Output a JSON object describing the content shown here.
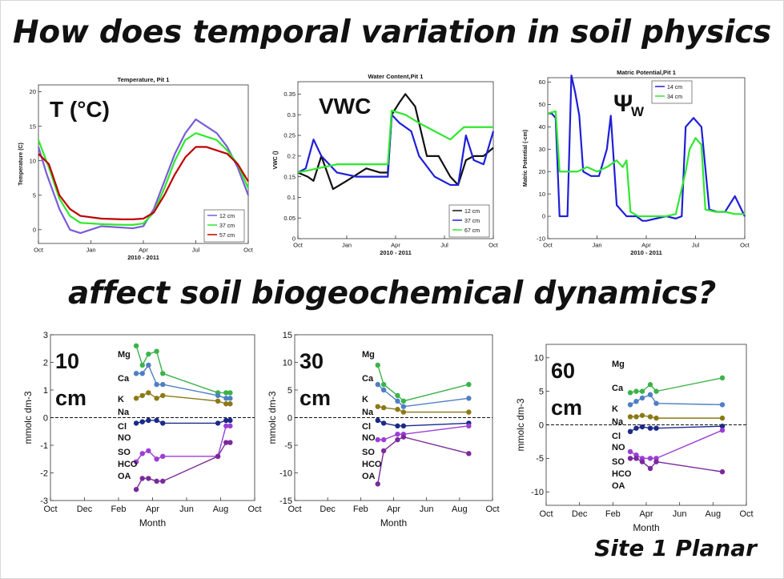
{
  "headline_top": "How does temporal variation in soil physics",
  "headline_bottom": "affect soil biogeochemical dynamics?",
  "site_label": "Site 1 Planar",
  "colors": {
    "blue": "#1f1fd8",
    "green": "#2ee82e",
    "black": "#111111",
    "red": "#c00000",
    "violet": "#7a5cd6",
    "cat_green": "#3cb34a",
    "cat_blue": "#4f7fc4",
    "olive": "#8a7a16",
    "purple": "#7a2a9a",
    "magenta": "#9b3fd6",
    "dark_blue": "#1a2a8a"
  },
  "chart_data": [
    {
      "type": "line",
      "title": "Temperature, Pit 1",
      "overlay_label": "T (°C)",
      "ylabel": "Temperature (C)",
      "xlabel": "2010 - 2011",
      "x_ticks": [
        "Oct",
        "Jan",
        "Apr",
        "Jul",
        "Oct"
      ],
      "y_ticks": [
        "0",
        "5",
        "10",
        "15",
        "20"
      ],
      "ylim": [
        -2,
        21
      ],
      "series": [
        {
          "name": "12 cm",
          "color": "violet",
          "x": [
            0,
            0.04,
            0.1,
            0.15,
            0.2,
            0.3,
            0.4,
            0.45,
            0.5,
            0.55,
            0.6,
            0.65,
            0.7,
            0.75,
            0.8,
            0.85,
            0.9,
            0.95,
            1
          ],
          "y": [
            12,
            8,
            3,
            0,
            -0.5,
            0.5,
            0.3,
            0.2,
            0.5,
            3,
            7,
            11,
            14,
            16,
            15,
            14,
            12,
            9,
            5
          ]
        },
        {
          "name": "37 cm",
          "color": "green",
          "x": [
            0,
            0.05,
            0.1,
            0.15,
            0.2,
            0.3,
            0.4,
            0.45,
            0.5,
            0.55,
            0.6,
            0.65,
            0.7,
            0.75,
            0.8,
            0.85,
            0.9,
            0.95,
            1
          ],
          "y": [
            13,
            9,
            4.5,
            2,
            1,
            0.8,
            0.7,
            0.7,
            0.9,
            2.5,
            6,
            10,
            13,
            14,
            13.5,
            13,
            11.5,
            9.5,
            6
          ]
        },
        {
          "name": "57 cm",
          "color": "red",
          "x": [
            0,
            0.05,
            0.1,
            0.15,
            0.2,
            0.3,
            0.4,
            0.45,
            0.5,
            0.55,
            0.6,
            0.65,
            0.7,
            0.75,
            0.8,
            0.85,
            0.9,
            0.95,
            1
          ],
          "y": [
            11,
            9.5,
            5,
            3,
            2,
            1.6,
            1.5,
            1.5,
            1.6,
            2.5,
            5,
            8,
            10.5,
            12,
            12,
            11.5,
            11,
            9.5,
            7
          ]
        }
      ]
    },
    {
      "type": "line",
      "title": "Water Content,Pit 1",
      "overlay_label": "VWC",
      "ylabel": "VWC ()",
      "xlabel": "2010 - 2011",
      "x_ticks": [
        "Oct",
        "Jan",
        "Apr",
        "Jul",
        "Oct"
      ],
      "y_ticks": [
        "0",
        "0.05",
        "0.1",
        "0.15",
        "0.2",
        "0.25",
        "0.3",
        "0.35"
      ],
      "ylim": [
        0,
        0.38
      ],
      "series": [
        {
          "name": "12 cm",
          "color": "black",
          "x": [
            0,
            0.05,
            0.08,
            0.12,
            0.18,
            0.25,
            0.35,
            0.42,
            0.46,
            0.48,
            0.52,
            0.55,
            0.6,
            0.66,
            0.72,
            0.78,
            0.82,
            0.86,
            0.9,
            0.95,
            1
          ],
          "y": [
            0.16,
            0.15,
            0.14,
            0.2,
            0.12,
            0.14,
            0.17,
            0.16,
            0.16,
            0.3,
            0.33,
            0.35,
            0.32,
            0.2,
            0.2,
            0.15,
            0.13,
            0.19,
            0.2,
            0.2,
            0.22
          ]
        },
        {
          "name": "37 cm",
          "color": "blue",
          "x": [
            0,
            0.04,
            0.08,
            0.12,
            0.2,
            0.3,
            0.4,
            0.46,
            0.48,
            0.52,
            0.58,
            0.62,
            0.7,
            0.78,
            0.82,
            0.86,
            0.9,
            0.95,
            1
          ],
          "y": [
            0.16,
            0.17,
            0.24,
            0.2,
            0.16,
            0.15,
            0.15,
            0.15,
            0.3,
            0.28,
            0.26,
            0.2,
            0.15,
            0.13,
            0.13,
            0.25,
            0.19,
            0.18,
            0.26
          ]
        },
        {
          "name": "67 cm",
          "color": "green",
          "x": [
            0,
            0.1,
            0.2,
            0.3,
            0.4,
            0.46,
            0.48,
            0.55,
            0.62,
            0.7,
            0.78,
            0.85,
            0.9,
            0.95,
            1
          ],
          "y": [
            0.16,
            0.17,
            0.18,
            0.18,
            0.18,
            0.18,
            0.31,
            0.3,
            0.28,
            0.26,
            0.24,
            0.27,
            0.27,
            0.27,
            0.27
          ]
        }
      ]
    },
    {
      "type": "line",
      "title": "Matric Potential,Pit 1",
      "overlay_label": "Ψ",
      "overlay_subscript": "W",
      "ylabel": "Matric Potential (-cm)",
      "xlabel": "2010 - 2011",
      "x_ticks": [
        "Oct",
        "Jan",
        "Apr",
        "Jul",
        "Oct"
      ],
      "y_ticks": [
        "-10",
        "0",
        "10",
        "20",
        "30",
        "40",
        "50",
        "60"
      ],
      "ylim": [
        -10,
        62
      ],
      "series": [
        {
          "name": "14 cm",
          "color": "blue",
          "x": [
            0,
            0.02,
            0.04,
            0.06,
            0.08,
            0.1,
            0.12,
            0.14,
            0.16,
            0.18,
            0.22,
            0.26,
            0.3,
            0.32,
            0.35,
            0.4,
            0.45,
            0.48,
            0.5,
            0.55,
            0.6,
            0.65,
            0.68,
            0.7,
            0.74,
            0.78,
            0.82,
            0.86,
            0.9,
            0.95,
            1
          ],
          "y": [
            46,
            46,
            44,
            0,
            0,
            0,
            63,
            55,
            45,
            20,
            18,
            18,
            30,
            45,
            5,
            0,
            0,
            -2,
            -2,
            -1,
            0,
            -1,
            0,
            40,
            44,
            40,
            3,
            2,
            2,
            9,
            0
          ]
        },
        {
          "name": "34 cm",
          "color": "green",
          "x": [
            0,
            0.04,
            0.06,
            0.1,
            0.15,
            0.2,
            0.25,
            0.3,
            0.35,
            0.38,
            0.4,
            0.42,
            0.46,
            0.5,
            0.55,
            0.6,
            0.65,
            0.7,
            0.72,
            0.75,
            0.78,
            0.8,
            0.85,
            0.9,
            0.95,
            1
          ],
          "y": [
            46,
            47,
            20,
            20,
            20,
            22,
            20,
            22,
            25,
            22,
            25,
            2,
            0,
            0,
            0,
            0,
            1,
            20,
            30,
            35,
            32,
            3,
            2,
            2,
            1,
            1
          ]
        }
      ]
    },
    {
      "type": "line",
      "title": "",
      "overlay_label_1": "10",
      "overlay_label_2": "cm",
      "ylabel": "mmolc dm-3",
      "xlabel": "Month",
      "x_ticks": [
        "Oct",
        "Dec",
        "Feb",
        "Apr",
        "Jun",
        "Aug",
        "Oct"
      ],
      "y_ticks": [
        "-3",
        "-2",
        "-1",
        "0",
        "1",
        "2",
        "3"
      ],
      "ylim": [
        -3,
        3
      ],
      "ion_labels": [
        "Mg",
        "Ca",
        "K",
        "Na",
        "Cl",
        "NO",
        "SO",
        "HCO",
        "OA"
      ],
      "x": [
        0.42,
        0.45,
        0.48,
        0.52,
        0.55,
        0.82,
        0.86,
        0.88
      ],
      "series": [
        {
          "color": "cat_green",
          "y": [
            2.6,
            1.9,
            2.3,
            2.4,
            1.6,
            0.9,
            0.9,
            0.9
          ]
        },
        {
          "color": "cat_blue",
          "y": [
            1.6,
            1.6,
            1.9,
            1.2,
            1.2,
            0.8,
            0.7,
            0.7
          ]
        },
        {
          "color": "olive",
          "y": [
            0.7,
            0.8,
            0.9,
            0.7,
            0.8,
            0.6,
            0.5,
            0.5
          ]
        },
        {
          "color": "dark_blue",
          "y": [
            -0.2,
            -0.15,
            -0.1,
            -0.1,
            -0.2,
            -0.2,
            -0.1,
            -0.1
          ]
        },
        {
          "color": "magenta",
          "y": [
            -1.6,
            -1.3,
            -1.2,
            -1.5,
            -1.4,
            -1.4,
            -0.3,
            -0.3
          ]
        },
        {
          "color": "purple",
          "y": [
            -2.6,
            -2.2,
            -2.2,
            -2.3,
            -2.3,
            -1.4,
            -0.9,
            -0.9
          ]
        }
      ]
    },
    {
      "type": "line",
      "title": "",
      "overlay_label_1": "30",
      "overlay_label_2": "cm",
      "ylabel": "mmolc dm-3",
      "xlabel": "Month",
      "x_ticks": [
        "Oct",
        "Dec",
        "Feb",
        "Apr",
        "Jun",
        "Aug",
        "Oct"
      ],
      "y_ticks": [
        "-15",
        "-10",
        "-5",
        "0",
        "5",
        "10",
        "15"
      ],
      "ylim": [
        -15,
        15
      ],
      "ion_labels": [
        "Mg",
        "Ca",
        "K",
        "Na",
        "Cl",
        "NO",
        "SO",
        "HCO",
        "OA"
      ],
      "x": [
        0.42,
        0.45,
        0.52,
        0.55,
        0.88
      ],
      "series": [
        {
          "color": "cat_green",
          "y": [
            9.5,
            6,
            4,
            3,
            6
          ]
        },
        {
          "color": "cat_blue",
          "y": [
            6,
            5,
            3,
            2,
            3.5
          ]
        },
        {
          "color": "olive",
          "y": [
            2,
            1.8,
            1.5,
            1,
            1
          ]
        },
        {
          "color": "dark_blue",
          "y": [
            -0.5,
            -1,
            -1.5,
            -1.5,
            -1
          ]
        },
        {
          "color": "magenta",
          "y": [
            -4,
            -4,
            -3,
            -3,
            -1.5
          ]
        },
        {
          "color": "purple",
          "y": [
            -12,
            -6,
            -4,
            -3.5,
            -6.5
          ]
        }
      ]
    },
    {
      "type": "line",
      "title": "",
      "overlay_label_1": "60",
      "overlay_label_2": "cm",
      "ylabel": "mmolc dm-3",
      "xlabel": "Month",
      "x_ticks": [
        "Oct",
        "Dec",
        "Feb",
        "Apr",
        "Jun",
        "Aug",
        "Oct"
      ],
      "y_ticks": [
        "-10",
        "-5",
        "0",
        "5",
        "10"
      ],
      "ylim": [
        -12,
        12
      ],
      "ion_labels": [
        "Mg",
        "Ca",
        "K",
        "Na",
        "Cl",
        "NO",
        "SO",
        "HCO",
        "OA"
      ],
      "x": [
        0.42,
        0.45,
        0.48,
        0.52,
        0.55,
        0.88
      ],
      "series": [
        {
          "color": "cat_green",
          "y": [
            4.8,
            5,
            5,
            6,
            5,
            7
          ]
        },
        {
          "color": "cat_blue",
          "y": [
            3,
            3.5,
            4,
            4.5,
            3.2,
            3
          ]
        },
        {
          "color": "olive",
          "y": [
            1.2,
            1.2,
            1.4,
            1.2,
            1,
            1
          ]
        },
        {
          "color": "dark_blue",
          "y": [
            -1,
            -0.5,
            -0.3,
            -0.5,
            -0.5,
            -0.2
          ]
        },
        {
          "color": "magenta",
          "y": [
            -4,
            -4.5,
            -5,
            -5,
            -5,
            -0.8
          ]
        },
        {
          "color": "purple",
          "y": [
            -5,
            -5,
            -5.5,
            -6.5,
            -5.5,
            -7
          ]
        }
      ]
    }
  ]
}
